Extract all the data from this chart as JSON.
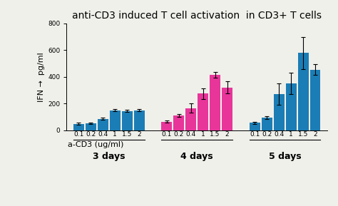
{
  "title": "anti-CD3 induced T cell activation  in CD3+ T cells",
  "ylabel_parts": [
    "IFN",
    " →",
    " pg/ml"
  ],
  "xlabel": "a-CD3 (ug/ml)",
  "ylim": [
    0,
    800
  ],
  "yticks": [
    0,
    200,
    400,
    600,
    800
  ],
  "concentrations": [
    "0.1",
    "0.2",
    "0.4",
    "1",
    "1.5",
    "2"
  ],
  "groups": [
    "3 days",
    "4 days",
    "5 days"
  ],
  "bar_colors": {
    "3 days": "#1b7db5",
    "4 days": "#e8359a",
    "5 days": "#1b7db5"
  },
  "values": {
    "3 days": [
      48,
      50,
      85,
      148,
      143,
      150
    ],
    "4 days": [
      65,
      110,
      165,
      275,
      415,
      320
    ],
    "5 days": [
      55,
      95,
      270,
      350,
      580,
      455
    ]
  },
  "errors": {
    "3 days": [
      8,
      6,
      8,
      8,
      8,
      10
    ],
    "4 days": [
      6,
      12,
      35,
      40,
      20,
      45
    ],
    "5 days": [
      8,
      10,
      80,
      80,
      120,
      40
    ]
  },
  "background_color": "#f0f0eb",
  "title_fontsize": 10,
  "axis_fontsize": 8,
  "tick_fontsize": 6.5,
  "group_label_fontsize": 9
}
